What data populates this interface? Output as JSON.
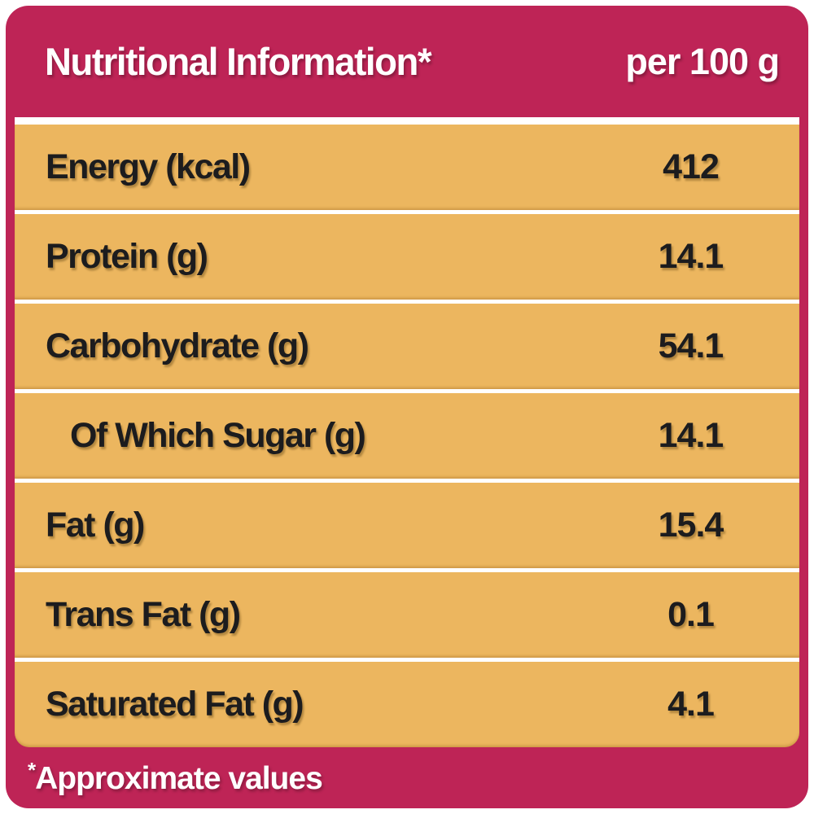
{
  "label": {
    "title": "Nutritional Information*",
    "serving": "per 100 g",
    "rows": [
      {
        "label": "Energy (kcal)",
        "value": "412"
      },
      {
        "label": "Protein (g)",
        "value": "14.1"
      },
      {
        "label": "Carbohydrate (g)",
        "value": "54.1"
      },
      {
        "label": "Of Which Sugar (g)",
        "value": "14.1",
        "indent": true
      },
      {
        "label": "Fat (g)",
        "value": "15.4"
      },
      {
        "label": "Trans Fat (g)",
        "value": "0.1"
      },
      {
        "label": "Saturated Fat (g)",
        "value": "4.1"
      }
    ],
    "footnote": {
      "asterisk": "*",
      "text": "Approximate values"
    }
  },
  "colors": {
    "card_pink": "#BE2456",
    "row_gold": "#ECB65F",
    "text_dark": "#1C1C1E",
    "text_light": "#FFFFFF",
    "gap_white": "#FFFFFF"
  }
}
